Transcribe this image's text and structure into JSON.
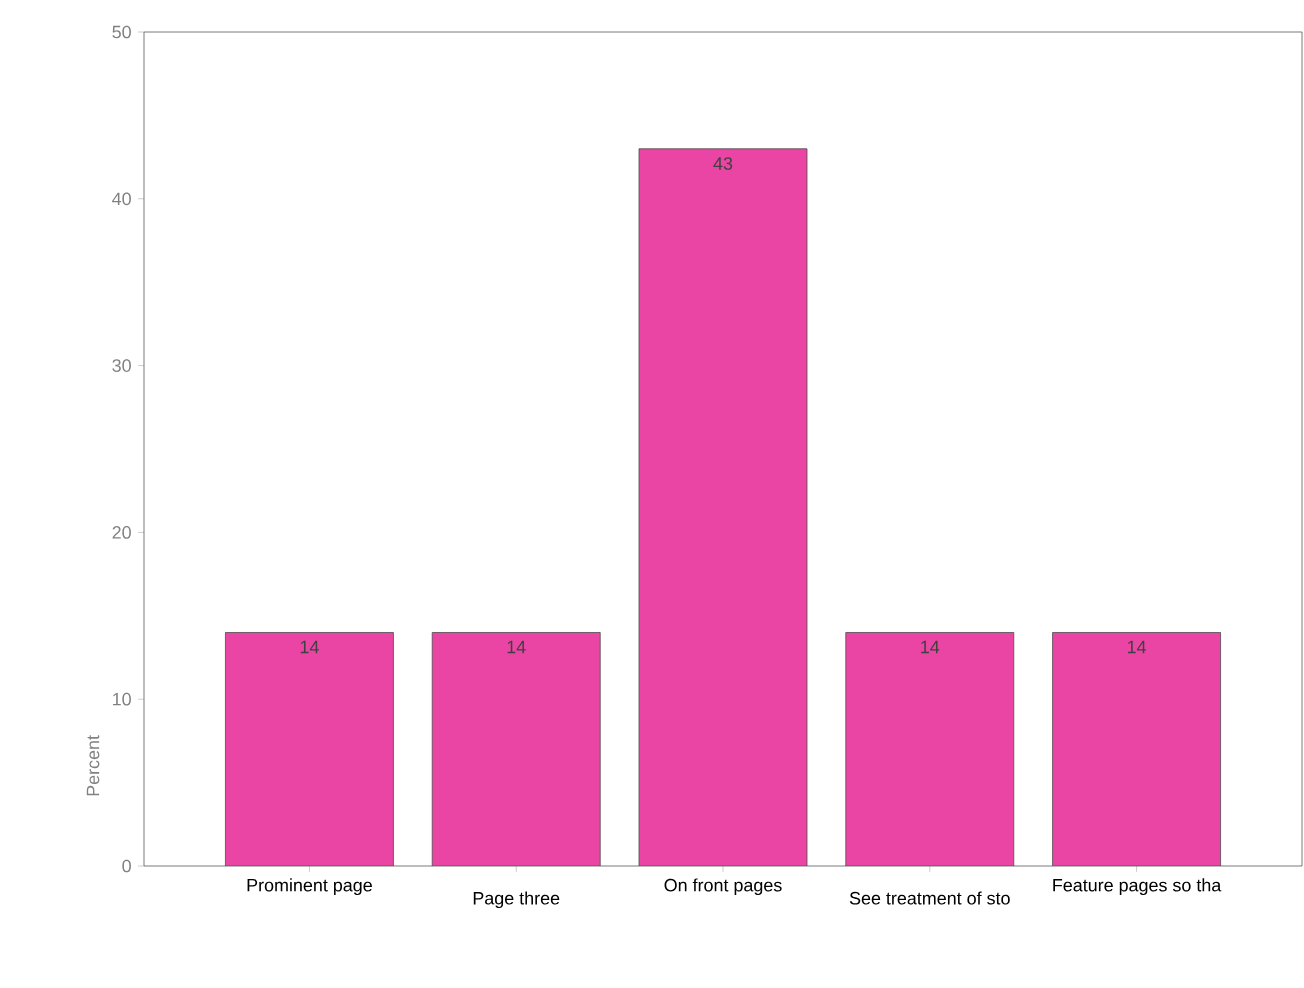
{
  "chart_data": {
    "type": "bar",
    "ylabel": "Percent",
    "categories": [
      "Prominent page",
      "Page three",
      "On front pages",
      "See treatment of sto",
      "Feature pages so tha"
    ],
    "values": [
      14,
      14,
      43,
      14,
      14
    ],
    "color": "#ea45a4",
    "ylim": [
      0,
      50
    ],
    "yticks": [
      0,
      10,
      20,
      30,
      40,
      50
    ],
    "data_labels": true
  }
}
